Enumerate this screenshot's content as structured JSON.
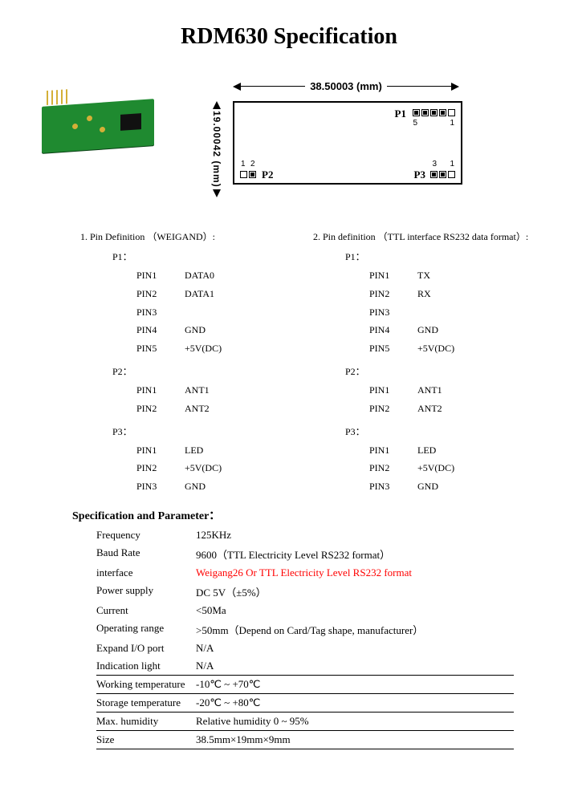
{
  "title": "RDM630 Specification",
  "diagram": {
    "width_label": "38.50003 (mm)",
    "height_label": "19.00042 (mm)",
    "headers": {
      "P1": {
        "label": "P1",
        "pins": 5,
        "num_left": "5",
        "num_right": "1"
      },
      "P2": {
        "label": "P2",
        "pins": 2,
        "num_left": "1",
        "num_right": "2"
      },
      "P3": {
        "label": "P3",
        "pins": 3,
        "num_left": "3",
        "num_right": "1"
      }
    }
  },
  "pindef": {
    "left": {
      "title": "1. Pin Definition （WEIGAND）:",
      "groups": [
        {
          "name": "P1：",
          "rows": [
            {
              "pn": "PIN1",
              "pv": "DATA0"
            },
            {
              "pn": "PIN2",
              "pv": "DATA1"
            },
            {
              "pn": "PIN3",
              "pv": ""
            },
            {
              "pn": "PIN4",
              "pv": "GND"
            },
            {
              "pn": "PIN5",
              "pv": "+5V(DC)"
            }
          ]
        },
        {
          "name": "P2：",
          "rows": [
            {
              "pn": "PIN1",
              "pv": "ANT1"
            },
            {
              "pn": "PIN2",
              "pv": "ANT2"
            }
          ]
        },
        {
          "name": "P3：",
          "rows": [
            {
              "pn": "PIN1",
              "pv": "LED"
            },
            {
              "pn": "PIN2",
              "pv": "+5V(DC)"
            },
            {
              "pn": "PIN3",
              "pv": "GND"
            }
          ]
        }
      ]
    },
    "right": {
      "title": "2. Pin definition （TTL interface RS232 data format）:",
      "groups": [
        {
          "name": "P1：",
          "rows": [
            {
              "pn": "PIN1",
              "pv": "TX"
            },
            {
              "pn": "PIN2",
              "pv": "RX"
            },
            {
              "pn": "PIN3",
              "pv": ""
            },
            {
              "pn": "PIN4",
              "pv": "GND"
            },
            {
              "pn": "PIN5",
              "pv": "+5V(DC)"
            }
          ]
        },
        {
          "name": "P2：",
          "rows": [
            {
              "pn": "PIN1",
              "pv": "ANT1"
            },
            {
              "pn": "PIN2",
              "pv": "ANT2"
            }
          ]
        },
        {
          "name": "P3：",
          "rows": [
            {
              "pn": "PIN1",
              "pv": "LED"
            },
            {
              "pn": "PIN2",
              "pv": "+5V(DC)"
            },
            {
              "pn": "PIN3",
              "pv": "GND"
            }
          ]
        }
      ]
    }
  },
  "spec_title": "Specification and Parameter：",
  "specs": {
    "frequency": {
      "k": "Frequency",
      "v": "125KHz"
    },
    "baud": {
      "k": "Baud Rate",
      "v": "9600（TTL Electricity Level RS232 format）"
    },
    "interface": {
      "k": "interface",
      "v": "Weigang26 Or TTL Electricity Level RS232 format"
    },
    "power": {
      "k": "Power supply",
      "v": "DC 5V（±5%）"
    },
    "current": {
      "k": "Current",
      "v": "<50Ma"
    },
    "range": {
      "k": "Operating range",
      "v": ">50mm（Depend on Card/Tag shape, manufacturer）"
    },
    "io": {
      "k": "Expand I/O port",
      "v": "N/A"
    },
    "ind": {
      "k": "Indication light",
      "v": "N/A"
    },
    "wtemp": {
      "k": "Working temperature",
      "v": "-10℃ ~ +70℃"
    },
    "stemp": {
      "k": "Storage temperature",
      "v": "-20℃ ~ +80℃"
    },
    "hum": {
      "k": "Max. humidity",
      "v": "Relative humidity 0 ~ 95%"
    },
    "size": {
      "k": "Size",
      "v": "38.5mm×19mm×9mm"
    }
  }
}
